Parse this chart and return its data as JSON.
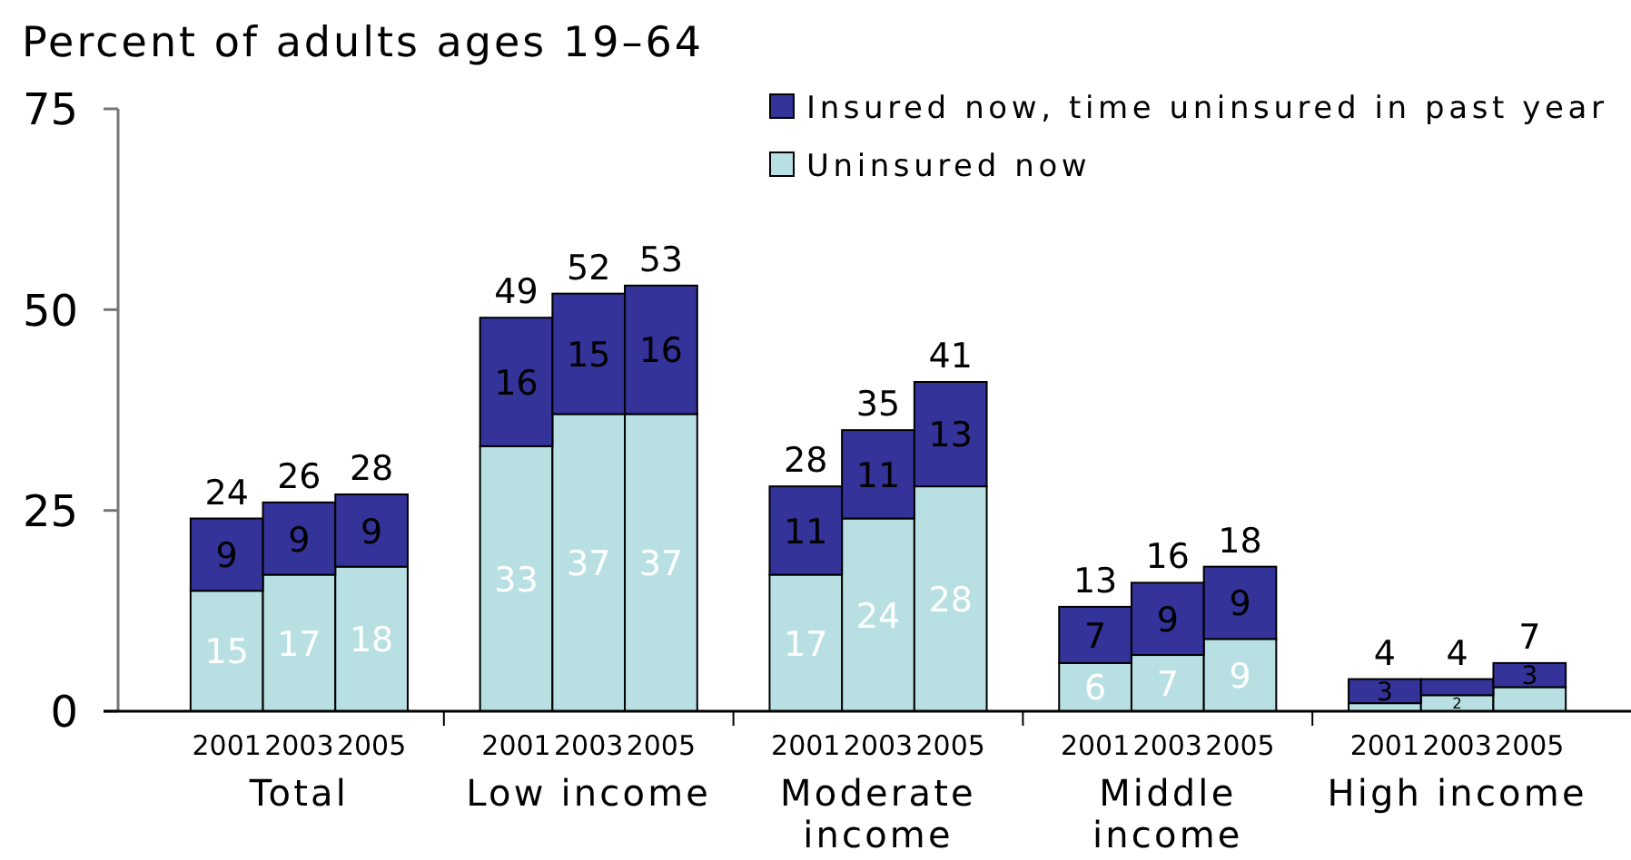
{
  "chart_data": {
    "type": "bar",
    "stacked": true,
    "ylabel": "Percent of adults ages 19–64",
    "categories": [
      "2001",
      "2003",
      "2005",
      "2001",
      "2003",
      "2005",
      "2001",
      "2003",
      "2005",
      "2001",
      "2003",
      "2005",
      "2001",
      "2003",
      "2005"
    ],
    "annotations": [
      "Total",
      "Low income",
      "Moderate income",
      "Middle income",
      "High income"
    ],
    "series": [
      {
        "name": "Uninsured now",
        "color": "#b8e0e2",
        "values": [
          15,
          17,
          18,
          33,
          37,
          37,
          17,
          24,
          28,
          6,
          7,
          9,
          1,
          2,
          3
        ],
        "value_labels": [
          "15",
          "17",
          "18",
          "33",
          "37",
          "37",
          "17",
          "24",
          "28",
          "6",
          "7",
          "9",
          null,
          "2",
          null
        ]
      },
      {
        "name": "Insured now, time uninsured in past year",
        "color": "#333399",
        "values": [
          9,
          9,
          9,
          16,
          15,
          16,
          11,
          11,
          13,
          7,
          9,
          9,
          3,
          2,
          3
        ],
        "value_labels": [
          "9",
          "9",
          "9",
          "16",
          "15",
          "16",
          "11",
          "11",
          "13",
          "7",
          "9",
          "9",
          "3",
          null,
          "3"
        ]
      }
    ],
    "totals": [
      "24",
      "26",
      "28",
      "49",
      "52",
      "53",
      "28",
      "35",
      "41",
      "13",
      "16",
      "18",
      "4",
      "4",
      "7"
    ],
    "ylim": [
      0,
      75
    ],
    "yticks": [
      0,
      25,
      50,
      75
    ],
    "legend": "top right"
  }
}
